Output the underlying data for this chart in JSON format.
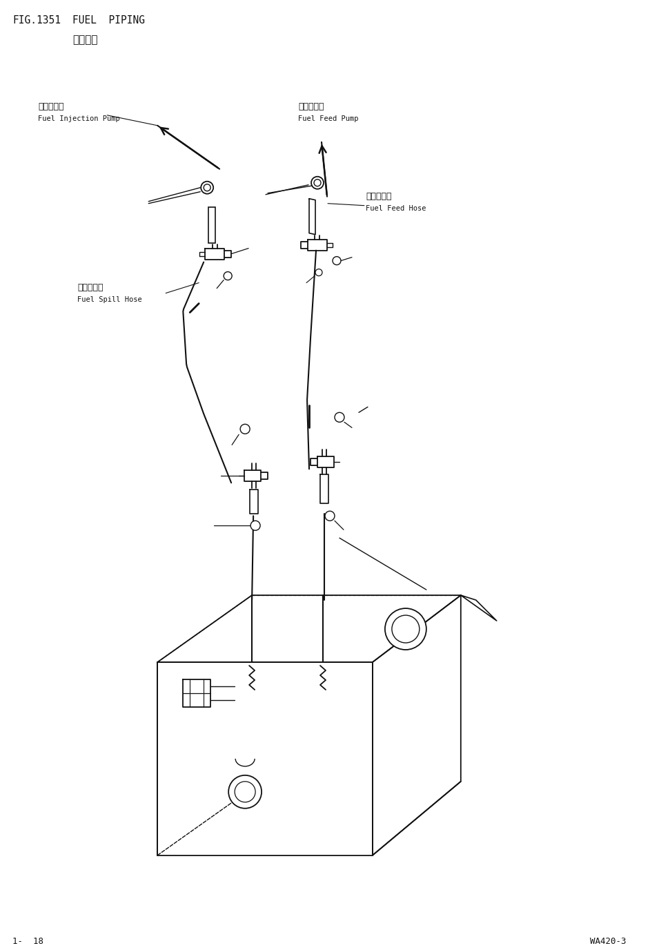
{
  "bg_color": "#ffffff",
  "fig_width": 9.71,
  "fig_height": 13.73,
  "title_left": "FIG.1351",
  "title_right": "FUEL  PIPING",
  "subtitle": "燃油管路",
  "footer_left": "1-  18",
  "footer_right": "WA420-3",
  "label_injection_pump_cn": "燃油喷射泵",
  "label_injection_pump_en": "Fuel Injection Pump",
  "label_feed_pump_cn": "燃油输送泵",
  "label_feed_pump_en": "Fuel Feed Pump",
  "label_feed_hose_cn": "燃油输送管",
  "label_feed_hose_en": "Fuel Feed Hose",
  "label_spill_hose_cn": "燃油回油管",
  "label_spill_hose_en": "Fuel Spill Hose",
  "line_color": "#111111",
  "text_color": "#111111"
}
